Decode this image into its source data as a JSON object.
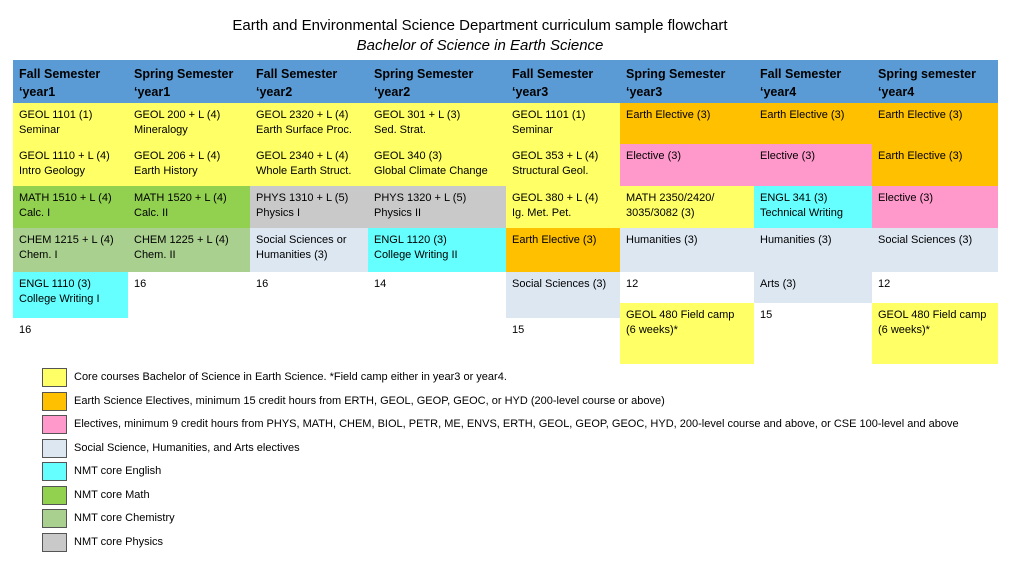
{
  "title": "Earth and Environmental Science Department curriculum sample flowchart",
  "subtitle": "Bachelor of Science in Earth Science",
  "colors": {
    "header": "#5b9bd5",
    "core": "#ffff66",
    "earth_elective": "#ffc000",
    "elective": "#ff99cc",
    "social_humanities_arts": "#dde7f2",
    "nmt_english": "#66ffff",
    "nmt_math": "#92d050",
    "nmt_chemistry": "#a9d08e",
    "nmt_physics": "#c9c9c9"
  },
  "headers": [
    "Fall Semester\n‘year1",
    "Spring Semester\n‘year1",
    "Fall Semester\n‘year2",
    "Spring Semester\n‘year2",
    "Fall Semester\n‘year3",
    "Spring Semester\n‘year3",
    "Fall Semester\n‘year4",
    "Spring semester\n‘year4"
  ],
  "cells": {
    "c0": [
      "GEOL 1101 (1)\nSeminar",
      "GEOL 1110 + L (4)\nIntro Geology",
      "MATH 1510 + L (4)\nCalc. I",
      "CHEM 1215 + L (4)\nChem. I",
      "ENGL 1110 (3)\nCollege Writing I",
      "16"
    ],
    "c1": [
      "GEOL 200 + L (4)\nMineralogy",
      "GEOL 206 + L (4)\nEarth History",
      "MATH 1520 + L (4)\nCalc. II",
      "CHEM 1225 + L (4)\nChem. II",
      "16"
    ],
    "c2": [
      "GEOL 2320 + L (4)\nEarth Surface Proc.",
      "GEOL 2340 + L (4)\nWhole Earth Struct.",
      "PHYS 1310 + L (5)\nPhysics I",
      "Social Sciences or\nHumanities (3)",
      "16"
    ],
    "c3": [
      "GEOL 301 + L (3)\nSed. Strat.",
      "GEOL 340  (3)\nGlobal Climate Change",
      "PHYS 1320 + L  (5)\nPhysics II",
      "ENGL 1120 (3)\nCollege Writing II",
      "14"
    ],
    "c4": [
      "GEOL 1101 (1)\nSeminar",
      "GEOL 353 + L (4)\nStructural Geol.",
      "GEOL 380 + L (4)\nIg. Met. Pet.",
      "Earth Elective (3)",
      "Social Sciences (3)",
      "15"
    ],
    "c5": [
      "Earth Elective (3)",
      "Elective (3)",
      "MATH 2350/2420/\n3035/3082 (3)",
      "Humanities (3)",
      "12",
      "GEOL 480 Field camp\n(6 weeks)*"
    ],
    "c6": [
      "Earth Elective (3)",
      "Elective (3)",
      "ENGL 341 (3)\nTechnical Writing",
      "Humanities (3)",
      "Arts (3)",
      "15"
    ],
    "c7": [
      "Earth Elective (3)",
      "Earth Elective (3)",
      "Elective (3)",
      "Social Sciences (3)",
      "12",
      "GEOL 480 Field camp\n(6 weeks)*"
    ]
  },
  "legend": [
    "Core courses Bachelor of Science in Earth Science. *Field camp either in year3 or year4.",
    "Earth Science Electives, minimum 15 credit hours from ERTH, GEOL, GEOP, GEOC, or HYD (200-level course or above)",
    "Electives, minimum 9 credit hours from PHYS, MATH, CHEM, BIOL, PETR, ME, ENVS, ERTH, GEOL, GEOP, GEOC, HYD, 200-level course and above, or CSE 100-level and above",
    "Social Science, Humanities, and Arts electives",
    "NMT core English",
    "NMT core Math",
    "NMT core Chemistry",
    "NMT core Physics"
  ]
}
